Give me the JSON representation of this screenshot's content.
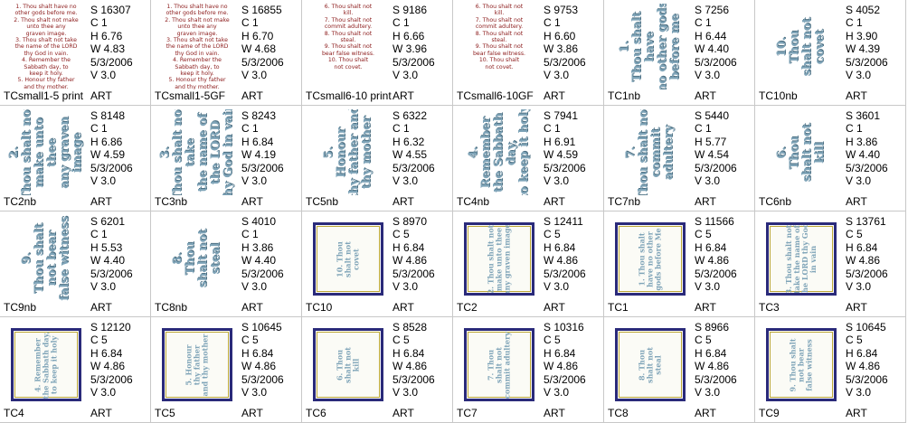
{
  "items": [
    {
      "name": "TCsmall1-5 print",
      "s": "S  16307",
      "c": "C  1",
      "h": "H  6.76",
      "w": "W  4.83",
      "date": "5/3/2006",
      "v": "V  3.0",
      "art": "ART",
      "thumb": "red",
      "lines": [
        "1. Thou shalt have no",
        "other gods before me.",
        "2. Thou shalt not make",
        "unto thee any",
        "graven image.",
        "3. Thou shalt not take",
        "the name of the LORD",
        "thy God in vain.",
        "4. Remember the",
        "Sabbath day, to",
        "keep it holy.",
        "5. Honour thy father",
        "and thy mother."
      ]
    },
    {
      "name": "TCsmall1-5GF",
      "s": "S  16855",
      "c": "C  1",
      "h": "H  6.70",
      "w": "W  4.68",
      "date": "5/3/2006",
      "v": "V  3.0",
      "art": "ART",
      "thumb": "red",
      "lines": [
        "1. Thou shalt have no",
        "other gods before me.",
        "2. Thou shalt not make",
        "unto thee any",
        "graven image.",
        "3. Thou shalt not take",
        "the name of the LORD",
        "thy God in vain.",
        "4. Remember the",
        "Sabbath day, to",
        "keep it holy.",
        "5. Honour thy father",
        "and thy mother."
      ]
    },
    {
      "name": "TCsmall6-10 print",
      "s": "S  9186",
      "c": "C  1",
      "h": "H  6.66",
      "w": "W  3.96",
      "date": "5/3/2006",
      "v": "V  3.0",
      "art": "ART",
      "thumb": "red",
      "lines": [
        "6. Thou shalt not",
        "kill.",
        "7. Thou shalt not",
        "commit adultery.",
        "8. Thou shalt not",
        "steal.",
        "9. Thou shalt not",
        "bear false witness.",
        "10. Thou shalt",
        "not covet."
      ]
    },
    {
      "name": "TCsmall6-10GF",
      "s": "S  9753",
      "c": "C  1",
      "h": "H  6.60",
      "w": "W  3.86",
      "date": "5/3/2006",
      "v": "V  3.0",
      "art": "ART",
      "thumb": "red",
      "lines": [
        "6. Thou shalt not",
        "kill.",
        "7. Thou shalt not",
        "commit adultery.",
        "8. Thou shalt not",
        "steal.",
        "9. Thou shalt not",
        "bear false witness.",
        "10. Thou shalt",
        "not covet."
      ]
    },
    {
      "name": "TC1nb",
      "s": "S  7256",
      "c": "C  1",
      "h": "H  6.44",
      "w": "W  4.40",
      "date": "5/3/2006",
      "v": "V  3.0",
      "art": "ART",
      "thumb": "rot",
      "lines": [
        "1.",
        "Thou shalt have",
        "no other gods",
        "before me"
      ]
    },
    {
      "name": "TC10nb",
      "s": "S  4052",
      "c": "C  1",
      "h": "H  3.90",
      "w": "W  4.39",
      "date": "5/3/2006",
      "v": "V  3.0",
      "art": "ART",
      "thumb": "rot",
      "lines": [
        "10.",
        "Thou",
        "shalt not",
        "covet"
      ]
    },
    {
      "name": "TC2nb",
      "s": "S  8148",
      "c": "C  1",
      "h": "H  6.86",
      "w": "W  4.59",
      "date": "5/3/2006",
      "v": "V  3.0",
      "art": "ART",
      "thumb": "rot",
      "lines": [
        "2.",
        "Thou shalt not",
        "make unto thee",
        "any graven image"
      ]
    },
    {
      "name": "TC3nb",
      "s": "S  8243",
      "c": "C  1",
      "h": "H  6.84",
      "w": "W  4.19",
      "date": "5/3/2006",
      "v": "V  3.0",
      "art": "ART",
      "thumb": "rot",
      "lines": [
        "3.",
        "Thou shalt not take",
        "the name of the LORD",
        "thy God in vain"
      ]
    },
    {
      "name": "TC5nb",
      "s": "S  6322",
      "c": "C  1",
      "h": "H  6.32",
      "w": "W  4.55",
      "date": "5/3/2006",
      "v": "V  3.0",
      "art": "ART",
      "thumb": "rot",
      "lines": [
        "5.",
        "Honour",
        "thy father and",
        "thy mother"
      ]
    },
    {
      "name": "TC4nb",
      "s": "S  7941",
      "c": "C  1",
      "h": "H  6.91",
      "w": "W  4.59",
      "date": "5/3/2006",
      "v": "V  3.0",
      "art": "ART",
      "thumb": "rot",
      "lines": [
        "4.",
        "Remember",
        "the Sabbath day,",
        "to keep it holy"
      ]
    },
    {
      "name": "TC7nb",
      "s": "S  5440",
      "c": "C  1",
      "h": "H  5.77",
      "w": "W  4.54",
      "date": "5/3/2006",
      "v": "V  3.0",
      "art": "ART",
      "thumb": "rot",
      "lines": [
        "7.",
        "Thou shalt not",
        "commit",
        "adultery"
      ]
    },
    {
      "name": "TC6nb",
      "s": "S  3601",
      "c": "C  1",
      "h": "H  3.86",
      "w": "W  4.40",
      "date": "5/3/2006",
      "v": "V  3.0",
      "art": "ART",
      "thumb": "rot",
      "lines": [
        "6.",
        "Thou",
        "shalt not",
        "kill"
      ]
    },
    {
      "name": "TC9nb",
      "s": "S  6201",
      "c": "C  1",
      "h": "H  5.53",
      "w": "W  4.40",
      "date": "5/3/2006",
      "v": "V  3.0",
      "art": "ART",
      "thumb": "rot",
      "lines": [
        "9.",
        "Thou shalt",
        "not bear",
        "false witness"
      ]
    },
    {
      "name": "TC8nb",
      "s": "S  4010",
      "c": "C  1",
      "h": "H  3.86",
      "w": "W  4.40",
      "date": "5/3/2006",
      "v": "V  3.0",
      "art": "ART",
      "thumb": "rot",
      "lines": [
        "8.",
        "Thou",
        "shalt not",
        "steal"
      ]
    },
    {
      "name": "TC10",
      "s": "S  8970",
      "c": "C  5",
      "h": "H  6.84",
      "w": "W  4.86",
      "date": "5/3/2006",
      "v": "V  3.0",
      "art": "ART",
      "thumb": "frame",
      "lines": [
        "10. Thou",
        "shalt not",
        "covet"
      ]
    },
    {
      "name": "TC2",
      "s": "S  12411",
      "c": "C  5",
      "h": "H  6.84",
      "w": "W  4.86",
      "date": "5/3/2006",
      "v": "V  3.0",
      "art": "ART",
      "thumb": "frame",
      "lines": [
        "2. Thou shalt not",
        "make unto thee",
        "any graven image"
      ]
    },
    {
      "name": "TC1",
      "s": "S  11566",
      "c": "C  5",
      "h": "H  6.84",
      "w": "W  4.86",
      "date": "5/3/2006",
      "v": "V  3.0",
      "art": "ART",
      "thumb": "frame",
      "lines": [
        "1. Thou shalt",
        "have no other",
        "gods before Me"
      ]
    },
    {
      "name": "TC3",
      "s": "S  13761",
      "c": "C  5",
      "h": "H  6.84",
      "w": "W  4.86",
      "date": "5/3/2006",
      "v": "V  3.0",
      "art": "ART",
      "thumb": "frame",
      "lines": [
        "3. Thou shalt not",
        "take the name of",
        "the LORD thy God",
        "in vain"
      ]
    },
    {
      "name": "TC4",
      "s": "S  12120",
      "c": "C  5",
      "h": "H  6.84",
      "w": "W  4.86",
      "date": "5/3/2006",
      "v": "V  3.0",
      "art": "ART",
      "thumb": "frame",
      "lines": [
        "4. Remember",
        "the Sabbath day,",
        "to keep it holy"
      ]
    },
    {
      "name": "TC5",
      "s": "S  10645",
      "c": "C  5",
      "h": "H  6.84",
      "w": "W  4.86",
      "date": "5/3/2006",
      "v": "V  3.0",
      "art": "ART",
      "thumb": "frame",
      "lines": [
        "5. Honour",
        "thy father",
        "and thy mother"
      ]
    },
    {
      "name": "TC6",
      "s": "S  8528",
      "c": "C  5",
      "h": "H  6.84",
      "w": "W  4.86",
      "date": "5/3/2006",
      "v": "V  3.0",
      "art": "ART",
      "thumb": "frame",
      "lines": [
        "6. Thou",
        "shalt not",
        "kill"
      ]
    },
    {
      "name": "TC7",
      "s": "S  10316",
      "c": "C  5",
      "h": "H  6.84",
      "w": "W  4.86",
      "date": "5/3/2006",
      "v": "V  3.0",
      "art": "ART",
      "thumb": "frame",
      "lines": [
        "7. Thou",
        "shalt not",
        "commit adultery"
      ]
    },
    {
      "name": "TC8",
      "s": "S  8966",
      "c": "C  5",
      "h": "H  6.84",
      "w": "W  4.86",
      "date": "5/3/2006",
      "v": "V  3.0",
      "art": "ART",
      "thumb": "frame",
      "lines": [
        "8. Thou",
        "shalt not",
        "steal"
      ]
    },
    {
      "name": "TC9",
      "s": "S  10645",
      "c": "C  5",
      "h": "H  6.84",
      "w": "W  4.86",
      "date": "5/3/2006",
      "v": "V  3.0",
      "art": "ART",
      "thumb": "frame",
      "lines": [
        "9. Thou shalt",
        "not bear",
        "false witness"
      ]
    }
  ],
  "colors": {
    "red_text": "#8b1a1a",
    "blue_text": "#7fa4b8",
    "frame_border": "#2a2a7a",
    "frame_inner": "#bca83a",
    "grid_line": "#c8c8c8"
  }
}
